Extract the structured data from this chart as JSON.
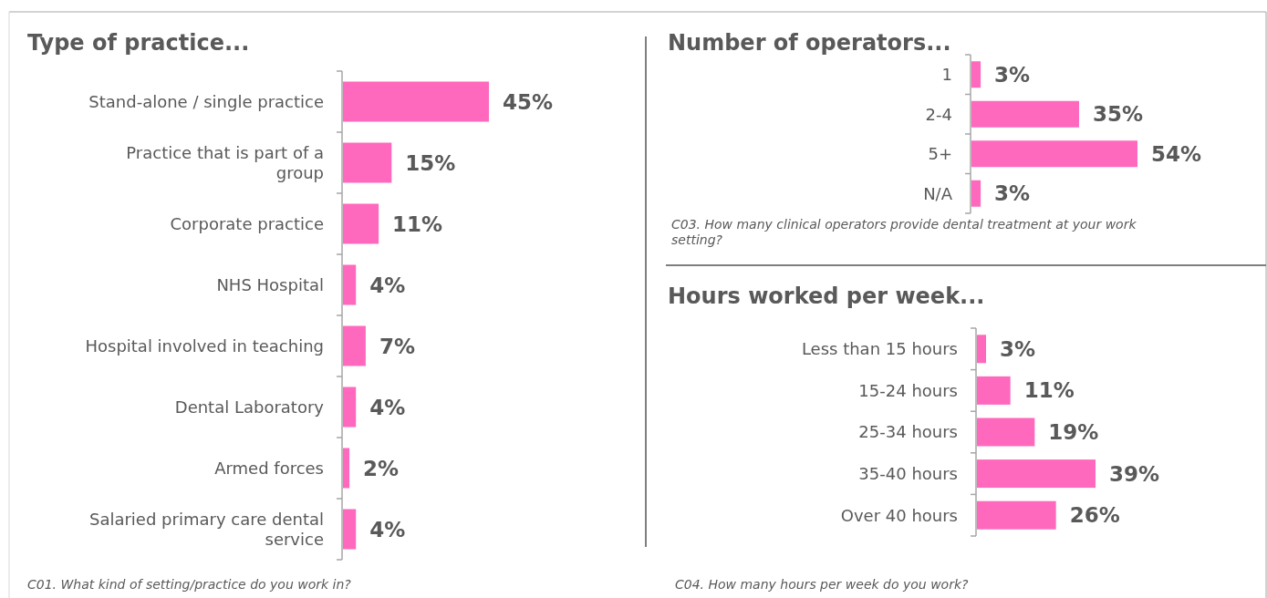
{
  "chart_data": [
    {
      "type": "bar",
      "orientation": "horizontal",
      "title": "Type of practice...",
      "categories": [
        "Stand-alone / single practice",
        "Practice that is part of a group",
        "Corporate practice",
        "NHS Hospital",
        "Hospital involved in teaching",
        "Dental Laboratory",
        "Armed forces",
        "Salaried primary care dental service"
      ],
      "values": [
        45,
        15,
        11,
        4,
        7,
        4,
        2,
        4
      ],
      "value_labels": [
        "45%",
        "15%",
        "11%",
        "4%",
        "7%",
        "4%",
        "2%",
        "4%"
      ],
      "color": "#ff69bd",
      "annotations": [
        "C01. What kind of setting/practice do you work in?"
      ]
    },
    {
      "type": "bar",
      "orientation": "horizontal",
      "title": "Number of operators...",
      "categories": [
        "1",
        "2-4",
        "5+",
        "N/A"
      ],
      "values": [
        3,
        35,
        54,
        3
      ],
      "value_labels": [
        "3%",
        "35%",
        "54%",
        "3%"
      ],
      "color": "#ff69bd",
      "annotations": [
        "C03. How many clinical operators provide dental treatment at your work setting?"
      ]
    },
    {
      "type": "bar",
      "orientation": "horizontal",
      "title": "Hours worked per week...",
      "categories": [
        "Less than 15 hours",
        "15-24 hours",
        "25-34 hours",
        "35-40 hours",
        "Over 40 hours"
      ],
      "values": [
        3,
        11,
        19,
        39,
        26
      ],
      "value_labels": [
        "3%",
        "11%",
        "19%",
        "39%",
        "26%"
      ],
      "color": "#ff69bd",
      "annotations": [
        "C04. How many hours per week do you work?"
      ]
    }
  ]
}
